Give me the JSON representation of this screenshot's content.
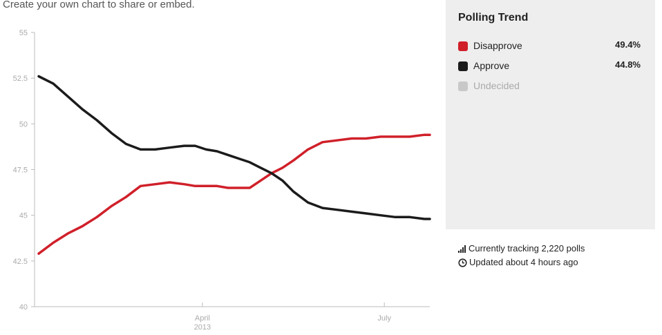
{
  "header": {
    "share_text": "Create your own chart to share or embed."
  },
  "colors": {
    "disapprove": "#d0202a",
    "approve": "#1b1b1b",
    "undecided": "#c8c8c8",
    "tick": "#aaaaaa"
  },
  "legend": {
    "title": "Polling Trend",
    "items": [
      {
        "label": "Disapprove",
        "value": "49.4%"
      },
      {
        "label": "Approve",
        "value": "44.8%"
      },
      {
        "label": "Undecided",
        "value": ""
      }
    ]
  },
  "info": {
    "tracking": "Currently tracking 2,220 polls",
    "updated": "Updated about 4 hours ago"
  },
  "chart_data": {
    "type": "line",
    "title": "Polling Trend",
    "xlabel": "",
    "ylabel": "",
    "ylim": [
      40,
      55
    ],
    "yticks": [
      "40",
      "42.5",
      "45",
      "47.5",
      "50",
      "52.5",
      "55"
    ],
    "xlim": [
      0,
      215
    ],
    "xticks": [
      {
        "label": "April",
        "sublabel": "2013",
        "x": 90
      },
      {
        "label": "July",
        "sublabel": "",
        "x": 190
      }
    ],
    "series": [
      {
        "name": "Disapprove",
        "x": [
          0,
          8,
          16,
          24,
          32,
          40,
          48,
          56,
          64,
          72,
          80,
          86,
          92,
          98,
          104,
          110,
          116,
          122,
          128,
          134,
          140,
          148,
          156,
          164,
          172,
          180,
          188,
          196,
          204,
          212,
          215
        ],
        "values": [
          42.9,
          43.5,
          44.0,
          44.4,
          44.9,
          45.5,
          46.0,
          46.6,
          46.7,
          46.8,
          46.7,
          46.6,
          46.6,
          46.6,
          46.5,
          46.5,
          46.5,
          46.9,
          47.3,
          47.6,
          48.0,
          48.6,
          49.0,
          49.1,
          49.2,
          49.2,
          49.3,
          49.3,
          49.3,
          49.4,
          49.4
        ]
      },
      {
        "name": "Approve",
        "x": [
          0,
          8,
          16,
          24,
          32,
          40,
          48,
          56,
          64,
          72,
          80,
          86,
          92,
          98,
          104,
          110,
          116,
          122,
          128,
          134,
          140,
          148,
          156,
          164,
          172,
          180,
          188,
          196,
          204,
          212,
          215
        ],
        "values": [
          52.6,
          52.2,
          51.5,
          50.8,
          50.2,
          49.5,
          48.9,
          48.6,
          48.6,
          48.7,
          48.8,
          48.8,
          48.6,
          48.5,
          48.3,
          48.1,
          47.9,
          47.6,
          47.3,
          46.9,
          46.3,
          45.7,
          45.4,
          45.3,
          45.2,
          45.1,
          45.0,
          44.9,
          44.9,
          44.8,
          44.8
        ]
      }
    ]
  }
}
